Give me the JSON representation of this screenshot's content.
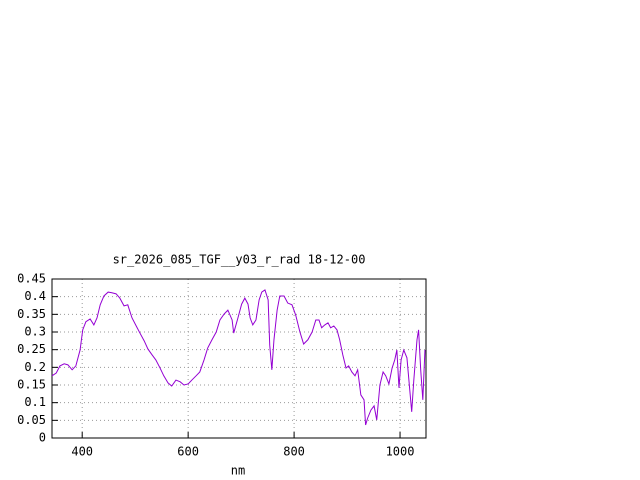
{
  "chart_data": {
    "type": "line",
    "title": "sr_2026_085_TGF__y03_r_rad 18-12-00",
    "x_label": "nm",
    "xlim": [
      343,
      1049
    ],
    "xticks": [
      400,
      600,
      800,
      1000
    ],
    "ylim": [
      0,
      0.45
    ],
    "yticks": [
      0,
      0.05,
      0.1,
      0.15,
      0.2,
      0.25,
      0.3,
      0.35,
      0.4,
      0.45
    ],
    "grid": true,
    "series": [
      {
        "color": "#9400d3",
        "x": [
          343,
          351,
          358,
          366,
          373,
          381,
          388,
          396,
          401,
          407,
          415,
          422,
          428,
          434,
          441,
          449,
          456,
          464,
          471,
          479,
          486,
          494,
          502,
          509,
          517,
          524,
          532,
          539,
          547,
          554,
          562,
          569,
          577,
          585,
          592,
          600,
          607,
          615,
          622,
          630,
          637,
          645,
          653,
          660,
          668,
          675,
          683,
          686,
          694,
          701,
          707,
          713,
          717,
          722,
          728,
          734,
          739,
          745,
          751,
          754,
          758,
          762,
          768,
          773,
          781,
          788,
          796,
          803,
          811,
          818,
          826,
          834,
          841,
          847,
          852,
          858,
          864,
          869,
          875,
          881,
          886,
          892,
          898,
          903,
          909,
          915,
          920,
          926,
          932,
          935,
          939,
          945,
          951,
          956,
          962,
          968,
          973,
          979,
          985,
          990,
          994,
          998,
          1002,
          1007,
          1013,
          1017,
          1022,
          1026,
          1032,
          1035,
          1039,
          1043,
          1047
        ],
        "values": [
          0.176,
          0.184,
          0.204,
          0.21,
          0.207,
          0.193,
          0.204,
          0.249,
          0.306,
          0.329,
          0.337,
          0.32,
          0.34,
          0.377,
          0.402,
          0.413,
          0.411,
          0.408,
          0.396,
          0.374,
          0.377,
          0.34,
          0.317,
          0.297,
          0.275,
          0.252,
          0.235,
          0.221,
          0.198,
          0.176,
          0.156,
          0.147,
          0.164,
          0.159,
          0.15,
          0.153,
          0.164,
          0.176,
          0.187,
          0.221,
          0.255,
          0.278,
          0.3,
          0.334,
          0.351,
          0.362,
          0.334,
          0.297,
          0.34,
          0.379,
          0.396,
          0.379,
          0.34,
          0.32,
          0.334,
          0.391,
          0.413,
          0.419,
          0.391,
          0.263,
          0.193,
          0.278,
          0.362,
          0.402,
          0.402,
          0.382,
          0.377,
          0.348,
          0.3,
          0.266,
          0.278,
          0.3,
          0.334,
          0.334,
          0.312,
          0.32,
          0.326,
          0.312,
          0.317,
          0.306,
          0.278,
          0.235,
          0.198,
          0.204,
          0.187,
          0.176,
          0.193,
          0.122,
          0.108,
          0.037,
          0.057,
          0.079,
          0.091,
          0.051,
          0.15,
          0.187,
          0.176,
          0.153,
          0.198,
          0.221,
          0.249,
          0.142,
          0.221,
          0.249,
          0.227,
          0.159,
          0.074,
          0.164,
          0.278,
          0.306,
          0.193,
          0.108,
          0.249
        ]
      }
    ]
  }
}
